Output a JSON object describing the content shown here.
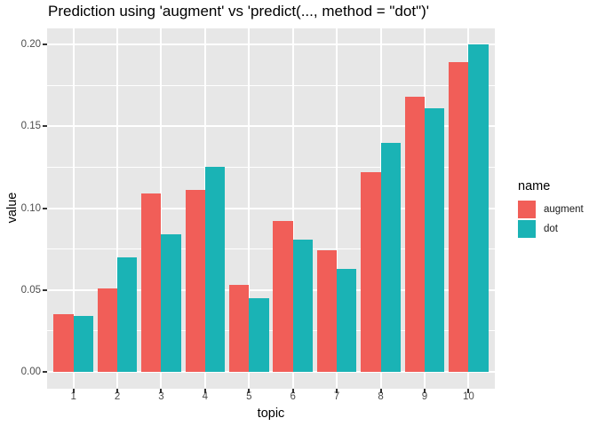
{
  "title": "Prediction using 'augment' vs 'predict(..., method = \"dot\")'",
  "chart_data": {
    "type": "bar",
    "title": "Prediction using 'augment' vs 'predict(..., method = \"dot\")'",
    "xlabel": "topic",
    "ylabel": "value",
    "categories": [
      "1",
      "2",
      "3",
      "4",
      "5",
      "6",
      "7",
      "8",
      "9",
      "10"
    ],
    "series": [
      {
        "name": "augment",
        "color": "#F15E58",
        "values": [
          0.035,
          0.051,
          0.109,
          0.111,
          0.053,
          0.092,
          0.074,
          0.122,
          0.168,
          0.189
        ]
      },
      {
        "name": "dot",
        "color": "#1AB3B5",
        "values": [
          0.034,
          0.07,
          0.084,
          0.125,
          0.045,
          0.081,
          0.063,
          0.14,
          0.161,
          0.2
        ]
      }
    ],
    "ylim": [
      0,
      0.21
    ],
    "ytick_labels": [
      "0.00",
      "0.05",
      "0.10",
      "0.15",
      "0.20"
    ],
    "ytick_values": [
      0,
      0.05,
      0.1,
      0.15,
      0.2
    ],
    "yminor_values": [
      0.025,
      0.075,
      0.125,
      0.175
    ],
    "grid": true,
    "legend_position": "right",
    "legend": {
      "title": "name",
      "entries": [
        "augment",
        "dot"
      ]
    },
    "colors": {
      "panel_background": "#E7E7E7",
      "gridline": "#FFFFFF",
      "tick_text": "#4D4D4D",
      "tick_mark": "#333333"
    }
  }
}
